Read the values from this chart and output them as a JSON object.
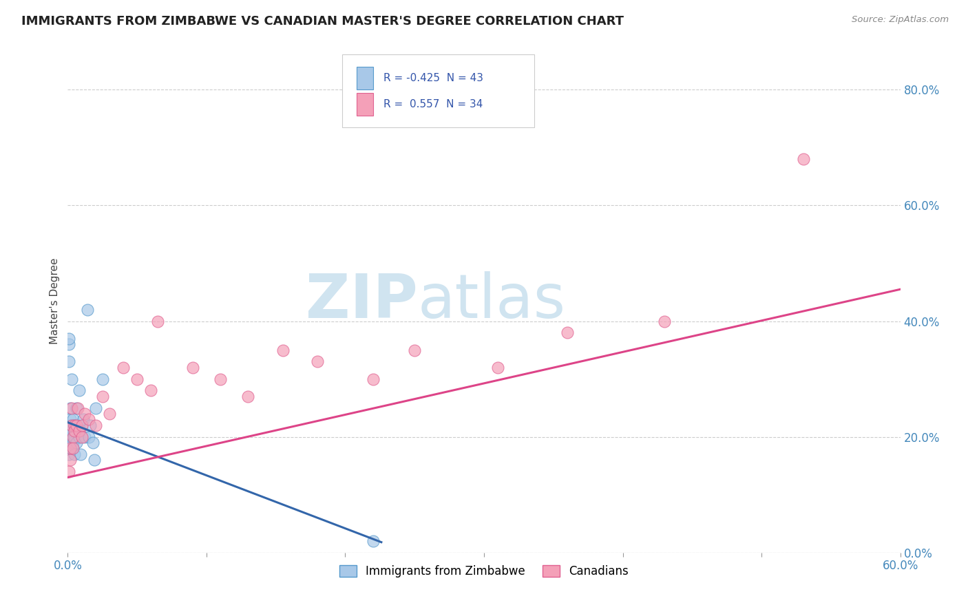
{
  "title": "IMMIGRANTS FROM ZIMBABWE VS CANADIAN MASTER'S DEGREE CORRELATION CHART",
  "source_text": "Source: ZipAtlas.com",
  "ylabel": "Master's Degree",
  "legend_labels": [
    "Immigrants from Zimbabwe",
    "Canadians"
  ],
  "r_blue": -0.425,
  "n_blue": 43,
  "r_pink": 0.557,
  "n_pink": 34,
  "xlim": [
    0.0,
    0.6
  ],
  "ylim": [
    0.0,
    0.87
  ],
  "yticks": [
    0.0,
    0.2,
    0.4,
    0.6,
    0.8
  ],
  "xticks": [
    0.0,
    0.1,
    0.2,
    0.3,
    0.4,
    0.5,
    0.6
  ],
  "blue_color": "#a8c8e8",
  "pink_color": "#f4a0b8",
  "blue_edge_color": "#5599cc",
  "pink_edge_color": "#e06090",
  "blue_line_color": "#3366aa",
  "pink_line_color": "#dd4488",
  "watermark_color": "#d0e4f0",
  "background_color": "#ffffff",
  "grid_color": "#cccccc",
  "tick_color": "#4488bb",
  "title_color": "#222222",
  "watermark": "ZIPatlas",
  "blue_scatter_x": [
    0.001,
    0.001,
    0.001,
    0.001,
    0.001,
    0.001,
    0.002,
    0.002,
    0.002,
    0.002,
    0.002,
    0.002,
    0.002,
    0.003,
    0.003,
    0.003,
    0.003,
    0.003,
    0.003,
    0.004,
    0.004,
    0.004,
    0.004,
    0.005,
    0.005,
    0.005,
    0.006,
    0.006,
    0.007,
    0.008,
    0.008,
    0.009,
    0.01,
    0.011,
    0.012,
    0.014,
    0.015,
    0.016,
    0.018,
    0.019,
    0.02,
    0.025,
    0.22
  ],
  "blue_scatter_y": [
    0.36,
    0.37,
    0.33,
    0.22,
    0.2,
    0.17,
    0.21,
    0.23,
    0.2,
    0.19,
    0.21,
    0.25,
    0.18,
    0.22,
    0.3,
    0.2,
    0.21,
    0.18,
    0.22,
    0.2,
    0.23,
    0.19,
    0.18,
    0.22,
    0.2,
    0.17,
    0.25,
    0.19,
    0.22,
    0.28,
    0.2,
    0.17,
    0.22,
    0.23,
    0.2,
    0.42,
    0.2,
    0.22,
    0.19,
    0.16,
    0.25,
    0.3,
    0.02
  ],
  "pink_scatter_x": [
    0.001,
    0.002,
    0.002,
    0.003,
    0.003,
    0.004,
    0.004,
    0.005,
    0.005,
    0.006,
    0.007,
    0.008,
    0.01,
    0.01,
    0.012,
    0.015,
    0.02,
    0.025,
    0.03,
    0.04,
    0.05,
    0.06,
    0.065,
    0.09,
    0.11,
    0.13,
    0.155,
    0.18,
    0.22,
    0.25,
    0.31,
    0.36,
    0.43,
    0.53
  ],
  "pink_scatter_y": [
    0.14,
    0.16,
    0.18,
    0.22,
    0.25,
    0.2,
    0.18,
    0.22,
    0.21,
    0.22,
    0.25,
    0.21,
    0.22,
    0.2,
    0.24,
    0.23,
    0.22,
    0.27,
    0.24,
    0.32,
    0.3,
    0.28,
    0.4,
    0.32,
    0.3,
    0.27,
    0.35,
    0.33,
    0.3,
    0.35,
    0.32,
    0.38,
    0.4,
    0.68
  ],
  "blue_line_x": [
    0.0,
    0.226
  ],
  "blue_line_y": [
    0.225,
    0.018
  ],
  "pink_line_x": [
    0.0,
    0.6
  ],
  "pink_line_y": [
    0.13,
    0.455
  ]
}
